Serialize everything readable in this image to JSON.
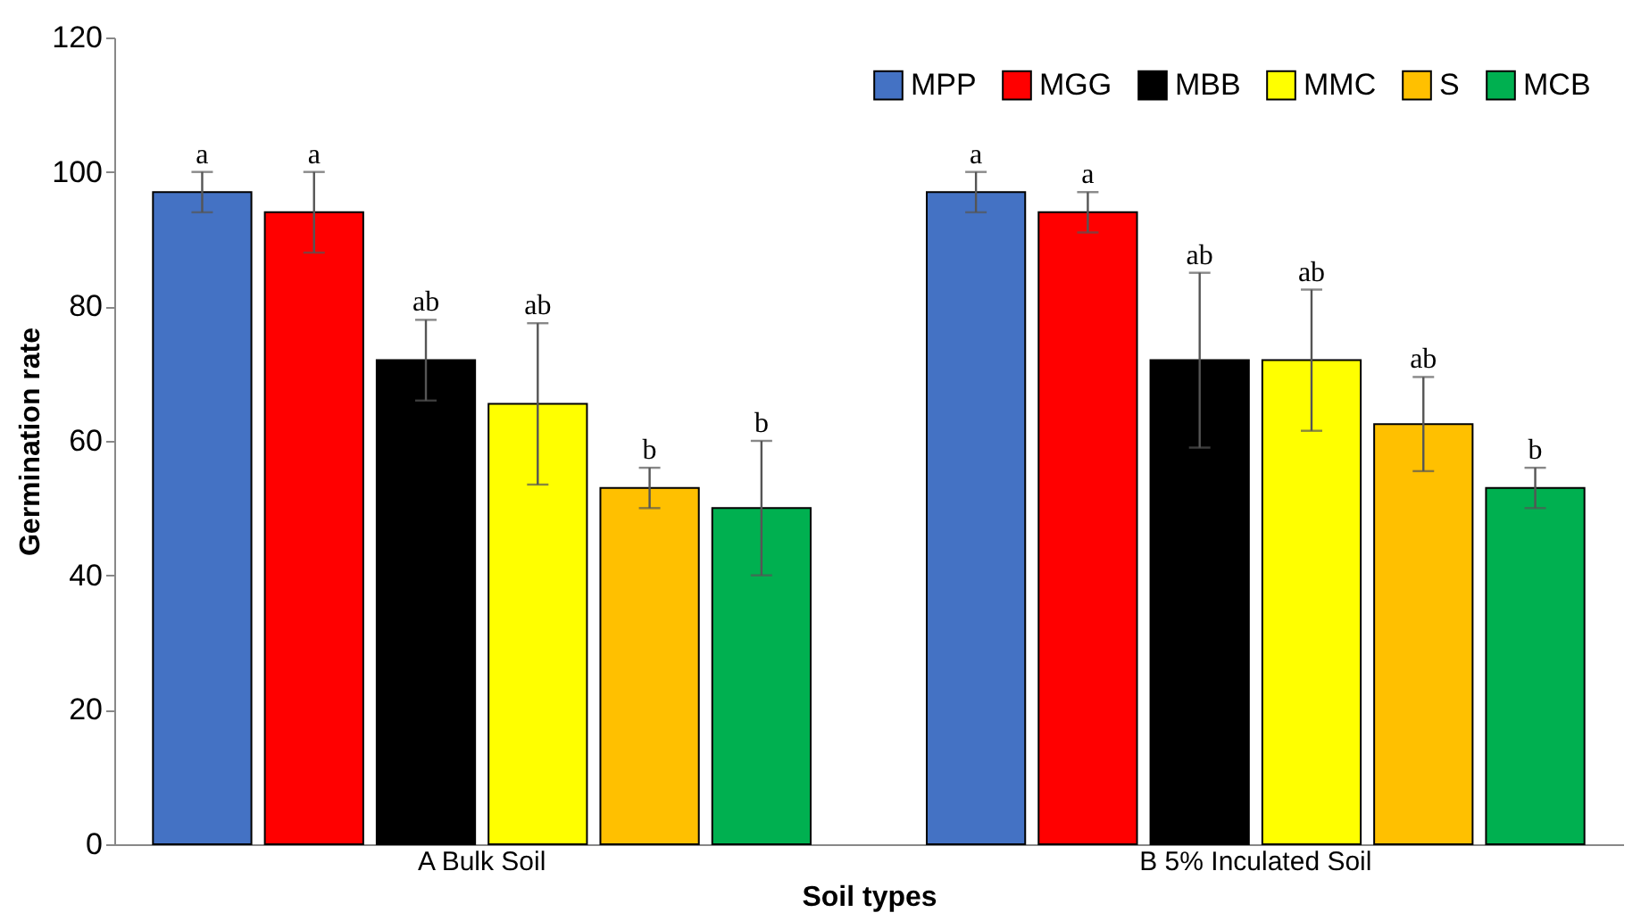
{
  "chart_data": {
    "type": "bar",
    "xlabel": "Soil types",
    "ylabel": "Germination rate",
    "categories": [
      "A  Bulk Soil",
      "B  5% Inculated Soil"
    ],
    "series": [
      {
        "name": "MPP",
        "color": "#4472c4",
        "values": [
          97,
          97
        ],
        "errors": [
          3,
          3
        ],
        "value_labels": [
          "a",
          "a"
        ]
      },
      {
        "name": "MGG",
        "color": "#ff0000",
        "values": [
          94,
          94
        ],
        "errors": [
          6,
          3
        ],
        "value_labels": [
          "a",
          "a"
        ]
      },
      {
        "name": "MBB",
        "color": "#000000",
        "values": [
          72,
          72
        ],
        "errors": [
          6,
          13
        ],
        "value_labels": [
          "ab",
          "ab"
        ]
      },
      {
        "name": "MMC",
        "color": "#ffff00",
        "values": [
          65.5,
          72
        ],
        "errors": [
          12,
          10.5
        ],
        "value_labels": [
          "ab",
          "ab"
        ]
      },
      {
        "name": "S",
        "color": "#ffc000",
        "values": [
          53,
          62.5
        ],
        "errors": [
          3,
          7
        ],
        "value_labels": [
          "b",
          "ab"
        ]
      },
      {
        "name": "MCB",
        "color": "#00b050",
        "values": [
          50,
          53
        ],
        "errors": [
          10,
          3
        ],
        "value_labels": [
          "b",
          "b"
        ]
      }
    ],
    "ylim": [
      0,
      120
    ],
    "yticks": [
      0,
      20,
      40,
      60,
      80,
      100,
      120
    ],
    "grid": false,
    "legend": "top right"
  }
}
